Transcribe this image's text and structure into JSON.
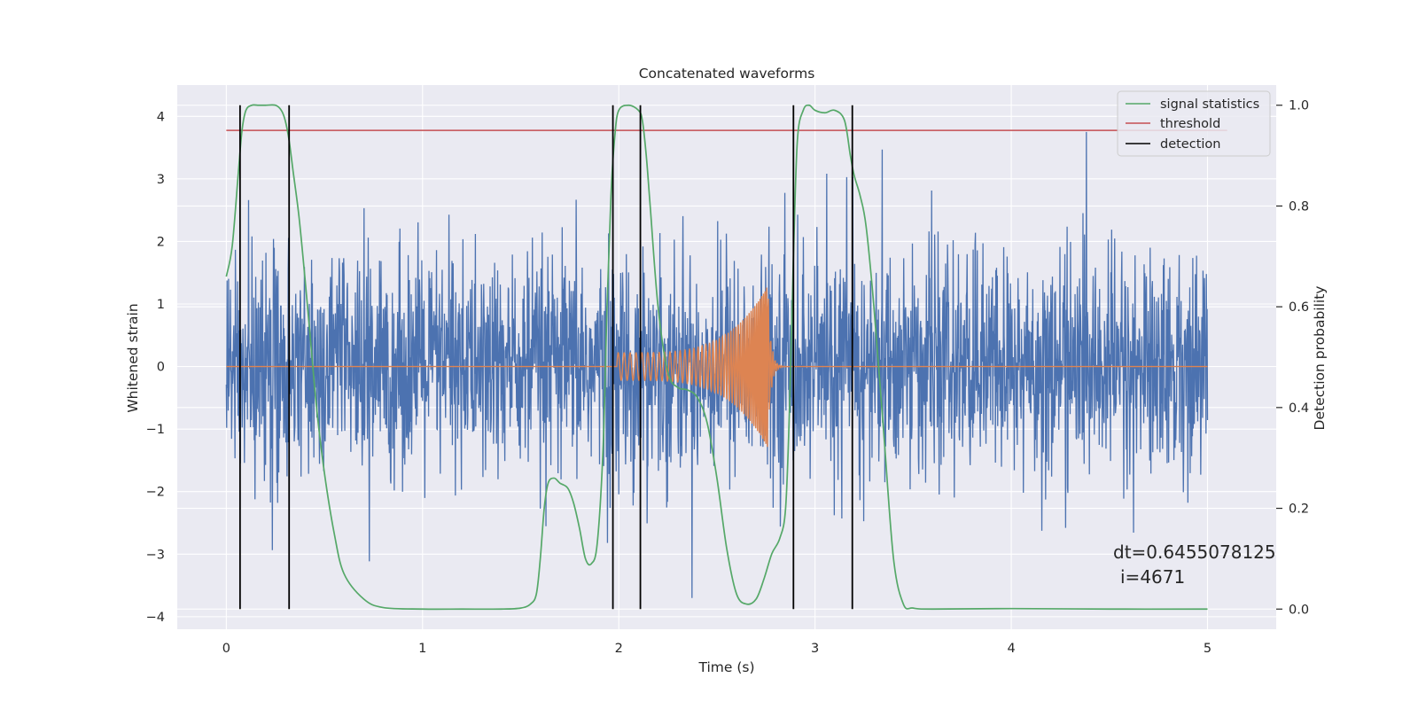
{
  "chart_data": {
    "type": "line",
    "title": "Concatenated waveforms",
    "xlabel": "Time (s)",
    "ylabel": "Whitened strain",
    "y2label": "Detection probability",
    "xlim": [
      -0.25,
      5.35
    ],
    "ylim": [
      -4.2,
      4.5
    ],
    "y2lim": [
      -0.04,
      1.04
    ],
    "x_ticks": [
      "0",
      "1",
      "2",
      "3",
      "4",
      "5"
    ],
    "y_ticks": [
      "4",
      "3",
      "2",
      "1",
      "0",
      "−1",
      "−2",
      "−3",
      "−4"
    ],
    "y2_ticks": [
      "1.0",
      "0.8",
      "0.6",
      "0.4",
      "0.2",
      "0.0"
    ],
    "grid": true,
    "legend_position": "top-right",
    "series": [
      {
        "name": "",
        "role": "whitened strain noise",
        "color": "#4c72b0",
        "x_range": [
          0,
          5
        ],
        "amplitude_range": [
          -3.7,
          3.75
        ]
      },
      {
        "name": "",
        "role": "injected chirp waveform",
        "color": "#dd8452",
        "chirp_start": 1.99,
        "chirp_merger": 2.76,
        "chirp_peak_amplitude": 1.3
      },
      {
        "name": "signal statistics",
        "axis": "right",
        "color": "#55a868",
        "x": [
          0,
          0.03,
          0.06,
          0.08,
          0.1,
          0.13,
          0.16,
          0.2,
          0.25,
          0.28,
          0.3,
          0.32,
          0.34,
          0.37,
          0.4,
          0.43,
          0.46,
          0.5,
          0.55,
          0.6,
          0.7,
          0.8,
          1.0,
          1.2,
          1.4,
          1.5,
          1.55,
          1.58,
          1.6,
          1.62,
          1.64,
          1.67,
          1.7,
          1.74,
          1.77,
          1.8,
          1.83,
          1.86,
          1.89,
          1.92,
          1.94,
          1.96,
          1.98,
          2.0,
          2.05,
          2.1,
          2.12,
          2.14,
          2.16,
          2.2,
          2.25,
          2.3,
          2.35,
          2.4,
          2.45,
          2.5,
          2.55,
          2.6,
          2.65,
          2.7,
          2.74,
          2.78,
          2.82,
          2.85,
          2.87,
          2.89,
          2.91,
          2.94,
          2.97,
          3.0,
          3.05,
          3.1,
          3.15,
          3.18,
          3.2,
          3.23,
          3.26,
          3.3,
          3.35,
          3.4,
          3.45,
          3.5,
          3.6,
          4.0,
          4.5,
          5.0
        ],
        "y": [
          0.66,
          0.72,
          0.86,
          0.95,
          0.99,
          1.0,
          1.0,
          1.0,
          1.0,
          0.99,
          0.97,
          0.93,
          0.87,
          0.78,
          0.66,
          0.53,
          0.4,
          0.27,
          0.15,
          0.07,
          0.02,
          0.003,
          0.0,
          0.0,
          0.0,
          0.002,
          0.01,
          0.03,
          0.1,
          0.2,
          0.25,
          0.26,
          0.25,
          0.24,
          0.21,
          0.16,
          0.1,
          0.09,
          0.13,
          0.32,
          0.6,
          0.82,
          0.94,
          0.99,
          1.0,
          0.99,
          0.97,
          0.9,
          0.8,
          0.6,
          0.47,
          0.44,
          0.435,
          0.42,
          0.37,
          0.26,
          0.12,
          0.03,
          0.01,
          0.02,
          0.06,
          0.11,
          0.14,
          0.2,
          0.4,
          0.7,
          0.93,
          0.99,
          1.0,
          0.99,
          0.985,
          0.99,
          0.97,
          0.9,
          0.86,
          0.82,
          0.76,
          0.6,
          0.35,
          0.1,
          0.01,
          0.002,
          0.0,
          0.001,
          0.0,
          0.0
        ]
      },
      {
        "name": "threshold",
        "axis": "right",
        "color": "#c44e52",
        "x": [
          0,
          5.1
        ],
        "y": [
          0.95,
          0.95
        ]
      },
      {
        "name": "detection",
        "color": "#000000",
        "vlines": [
          0.07,
          0.32,
          1.97,
          2.11,
          2.89,
          3.19
        ],
        "vline_range": [
          0.0,
          1.0
        ]
      }
    ],
    "annotation": {
      "line1": "dt=0.6455078125",
      "line2": "i=4671",
      "x": 4.5,
      "y2": 0.09
    }
  },
  "colors": {
    "figure_bg": "#ffffff",
    "plot_bg": "#eaeaf2",
    "grid": "#ffffff",
    "tick_mark": "#262626"
  }
}
